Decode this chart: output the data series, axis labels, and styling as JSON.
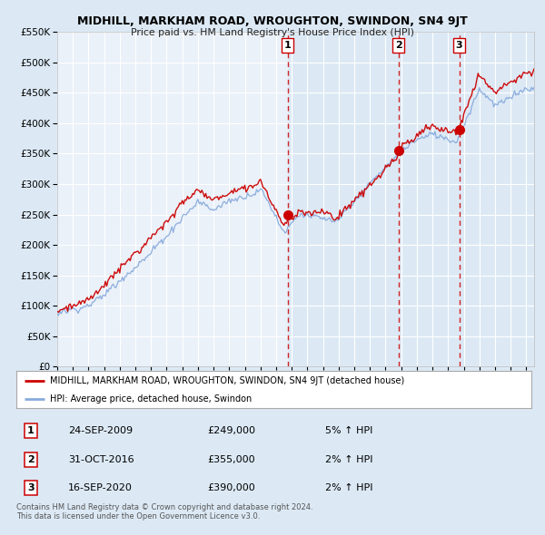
{
  "title": "MIDHILL, MARKHAM ROAD, WROUGHTON, SWINDON, SN4 9JT",
  "subtitle": "Price paid vs. HM Land Registry's House Price Index (HPI)",
  "legend_label_red": "MIDHILL, MARKHAM ROAD, WROUGHTON, SWINDON, SN4 9JT (detached house)",
  "legend_label_blue": "HPI: Average price, detached house, Swindon",
  "transactions": [
    {
      "num": 1,
      "date": "24-SEP-2009",
      "price": 249000,
      "pct": "5%",
      "dir": "↑"
    },
    {
      "num": 2,
      "date": "31-OCT-2016",
      "price": 355000,
      "pct": "2%",
      "dir": "↑"
    },
    {
      "num": 3,
      "date": "16-SEP-2020",
      "price": 390000,
      "pct": "2%",
      "dir": "↑"
    }
  ],
  "transaction_years": [
    2009.73,
    2016.83,
    2020.71
  ],
  "transaction_prices": [
    249000,
    355000,
    390000
  ],
  "footer1": "Contains HM Land Registry data © Crown copyright and database right 2024.",
  "footer2": "This data is licensed under the Open Government Licence v3.0.",
  "ylim": [
    0,
    550000
  ],
  "xlim_start": 1995.0,
  "xlim_end": 2025.5,
  "background_color": "#dce9f5",
  "plot_bg": "#eaf1f8",
  "shade_bg": "#dce9f5",
  "grid_color": "#ffffff",
  "red_line_color": "#cc0000",
  "blue_line_color": "#88aadd",
  "dashed_line_color": "#cc0000",
  "shade_start": 2009.73
}
